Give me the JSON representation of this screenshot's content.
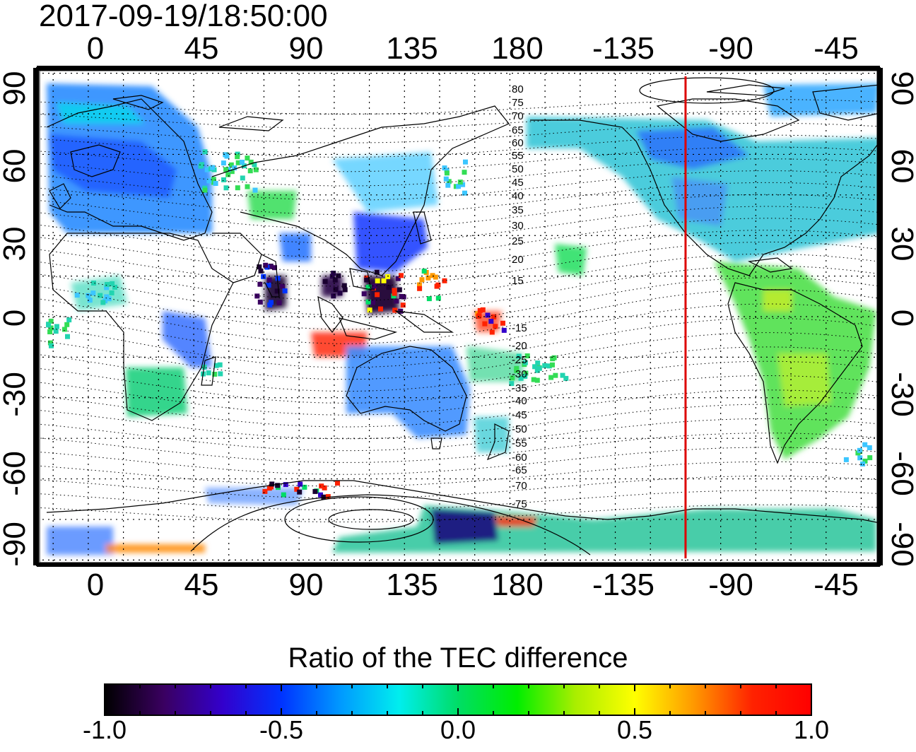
{
  "timestamp": "2017-09-19/18:50:00",
  "x_tick_labels": [
    "0",
    "45",
    "90",
    "135",
    "180",
    "-135",
    "-90",
    "-45"
  ],
  "y_tick_labels": [
    "90",
    "60",
    "30",
    "0",
    "-30",
    "-60",
    "-90"
  ],
  "magnetic_lat_labels": [
    "80",
    "75",
    "70",
    "65",
    "60",
    "55",
    "50",
    "45",
    "40",
    "35",
    "30",
    "25",
    "20",
    "15",
    "-15",
    "-20",
    "-25",
    "-30",
    "-35",
    "-40",
    "-45",
    "-50",
    "-55",
    "-60",
    "-65",
    "-70",
    "-75"
  ],
  "colorbar": {
    "title": "Ratio of the TEC difference",
    "tick_labels": [
      "-1.0",
      "-0.5",
      "0.0",
      "0.5",
      "1.0"
    ],
    "min": -1.0,
    "max": 1.0,
    "colors": [
      "#000000",
      "#3a0060",
      "#3300cc",
      "#0033ff",
      "#0099ff",
      "#00eeee",
      "#00dd66",
      "#00ee00",
      "#aaee00",
      "#ffff00",
      "#ff9900",
      "#ff2200",
      "#ff0000"
    ]
  },
  "terminator_color": "#dd0000",
  "chart_data": {
    "type": "heatmap",
    "xlabel": "",
    "ylabel": "",
    "x_ticks": [
      0,
      45,
      90,
      135,
      180,
      -135,
      -90,
      -45
    ],
    "y_ticks": [
      90,
      60,
      30,
      0,
      -30,
      -60,
      -90
    ],
    "xlim": [
      -22,
      338
    ],
    "ylim": [
      -92,
      92
    ],
    "grid": true,
    "colorbar_range": [
      -1.0,
      1.0
    ],
    "terminator_longitude": -105
  }
}
